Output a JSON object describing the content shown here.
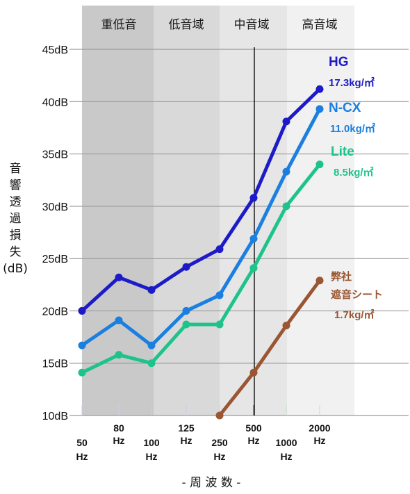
{
  "chart_data": {
    "type": "line",
    "x_label": "- 周 波 数 -",
    "y_label": [
      "音",
      "響",
      "透",
      "過",
      "損",
      "失",
      "(dB)"
    ],
    "x_categories": [
      {
        "top": "50",
        "bottom": "Hz"
      },
      {
        "top": "80",
        "bottom": "Hz"
      },
      {
        "top": "100",
        "bottom": "Hz"
      },
      {
        "top": "125",
        "bottom": "Hz"
      },
      {
        "top": "250",
        "bottom": "Hz"
      },
      {
        "top": "500",
        "bottom": "Hz"
      },
      {
        "top": "1000",
        "bottom": "Hz"
      },
      {
        "top": "2000",
        "bottom": "Hz"
      }
    ],
    "y_ticks": [
      "10dB",
      "15dB",
      "20dB",
      "25dB",
      "30dB",
      "35dB",
      "40dB",
      "45dB"
    ],
    "ylim": [
      10,
      45
    ],
    "grid": true,
    "bands": [
      {
        "label": "重低音",
        "color": "#c9c9c9"
      },
      {
        "label": "低音域",
        "color": "#d9d9d9"
      },
      {
        "label": "中音域",
        "color": "#e6e6e6"
      },
      {
        "label": "高音域",
        "color": "#f1f1f1"
      }
    ],
    "series": [
      {
        "name": "HG",
        "weight": "17.3kg/㎡",
        "color": "#1c1bc7",
        "values": [
          20.0,
          23.2,
          22.0,
          24.2,
          25.9,
          30.8,
          38.1,
          41.2
        ]
      },
      {
        "name": "N-CX",
        "weight": "11.0kg/㎡",
        "color": "#1a7fe0",
        "values": [
          16.7,
          19.1,
          16.7,
          20.0,
          21.5,
          26.9,
          33.3,
          39.3
        ]
      },
      {
        "name": "Lite",
        "weight": "8.5kg/㎡",
        "color": "#1ec38a",
        "values": [
          14.1,
          15.8,
          15.0,
          18.7,
          18.7,
          24.1,
          30.0,
          34.0
        ]
      },
      {
        "name": [
          "弊社",
          "遮音シート"
        ],
        "weight": "1.7kg/㎡",
        "color": "#9a5532",
        "values": [
          null,
          null,
          null,
          null,
          10.0,
          14.1,
          18.6,
          22.9
        ]
      }
    ]
  }
}
